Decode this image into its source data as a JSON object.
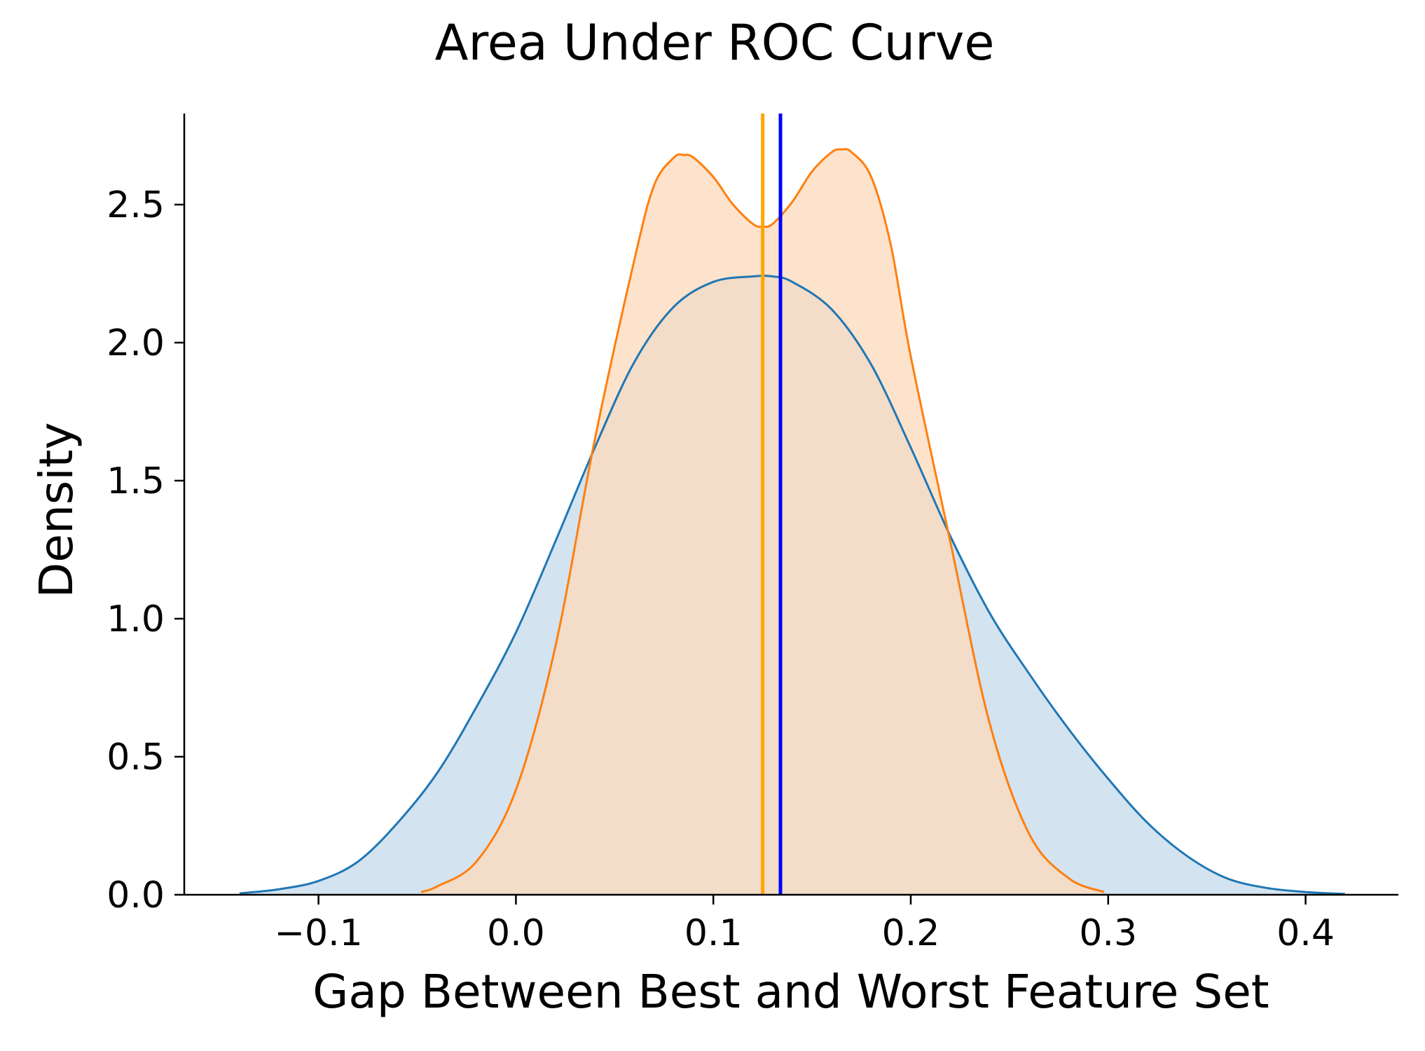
{
  "chart_data": {
    "type": "area",
    "title": "Area Under ROC Curve",
    "xlabel": "Gap Between Best and Worst Feature Set",
    "ylabel": "Density",
    "xlim": [
      -0.168,
      0.447
    ],
    "ylim": [
      0,
      2.83
    ],
    "x_ticks": [
      -0.1,
      0.0,
      0.1,
      0.2,
      0.3,
      0.4
    ],
    "x_tick_labels": [
      "−0.1",
      "0.0",
      "0.1",
      "0.2",
      "0.3",
      "0.4"
    ],
    "y_ticks": [
      0.0,
      0.5,
      1.0,
      1.5,
      2.0,
      2.5
    ],
    "y_tick_labels": [
      "0.0",
      "0.5",
      "1.0",
      "1.5",
      "2.0",
      "2.5"
    ],
    "grid": false,
    "legend": "none",
    "series": [
      {
        "color": "#1f77b4",
        "fill": "#c5daeb",
        "x": [
          -0.14,
          -0.12,
          -0.1,
          -0.08,
          -0.06,
          -0.04,
          -0.02,
          0.0,
          0.02,
          0.04,
          0.06,
          0.08,
          0.1,
          0.12,
          0.13,
          0.14,
          0.16,
          0.18,
          0.2,
          0.22,
          0.24,
          0.26,
          0.28,
          0.3,
          0.32,
          0.34,
          0.36,
          0.38,
          0.4,
          0.42
        ],
        "y": [
          0.005,
          0.02,
          0.05,
          0.12,
          0.26,
          0.44,
          0.68,
          0.95,
          1.28,
          1.62,
          1.93,
          2.13,
          2.22,
          2.24,
          2.24,
          2.22,
          2.12,
          1.92,
          1.62,
          1.3,
          1.02,
          0.8,
          0.6,
          0.42,
          0.26,
          0.14,
          0.06,
          0.025,
          0.01,
          0.003
        ]
      },
      {
        "color": "#ff7f0e",
        "fill": "#fdd9bb",
        "x": [
          -0.048,
          -0.04,
          -0.02,
          0.0,
          0.02,
          0.04,
          0.06,
          0.07,
          0.08,
          0.085,
          0.09,
          0.1,
          0.11,
          0.12,
          0.125,
          0.13,
          0.14,
          0.15,
          0.16,
          0.165,
          0.17,
          0.18,
          0.19,
          0.2,
          0.22,
          0.24,
          0.26,
          0.28,
          0.298
        ],
        "y": [
          0.01,
          0.03,
          0.12,
          0.38,
          0.9,
          1.65,
          2.3,
          2.57,
          2.67,
          2.68,
          2.67,
          2.6,
          2.5,
          2.43,
          2.42,
          2.43,
          2.51,
          2.62,
          2.69,
          2.7,
          2.69,
          2.6,
          2.35,
          1.95,
          1.28,
          0.62,
          0.22,
          0.06,
          0.01
        ]
      }
    ],
    "vertical_lines": [
      {
        "x": 0.125,
        "color": "#ffa500"
      },
      {
        "x": 0.134,
        "color": "#0000ff"
      }
    ]
  }
}
